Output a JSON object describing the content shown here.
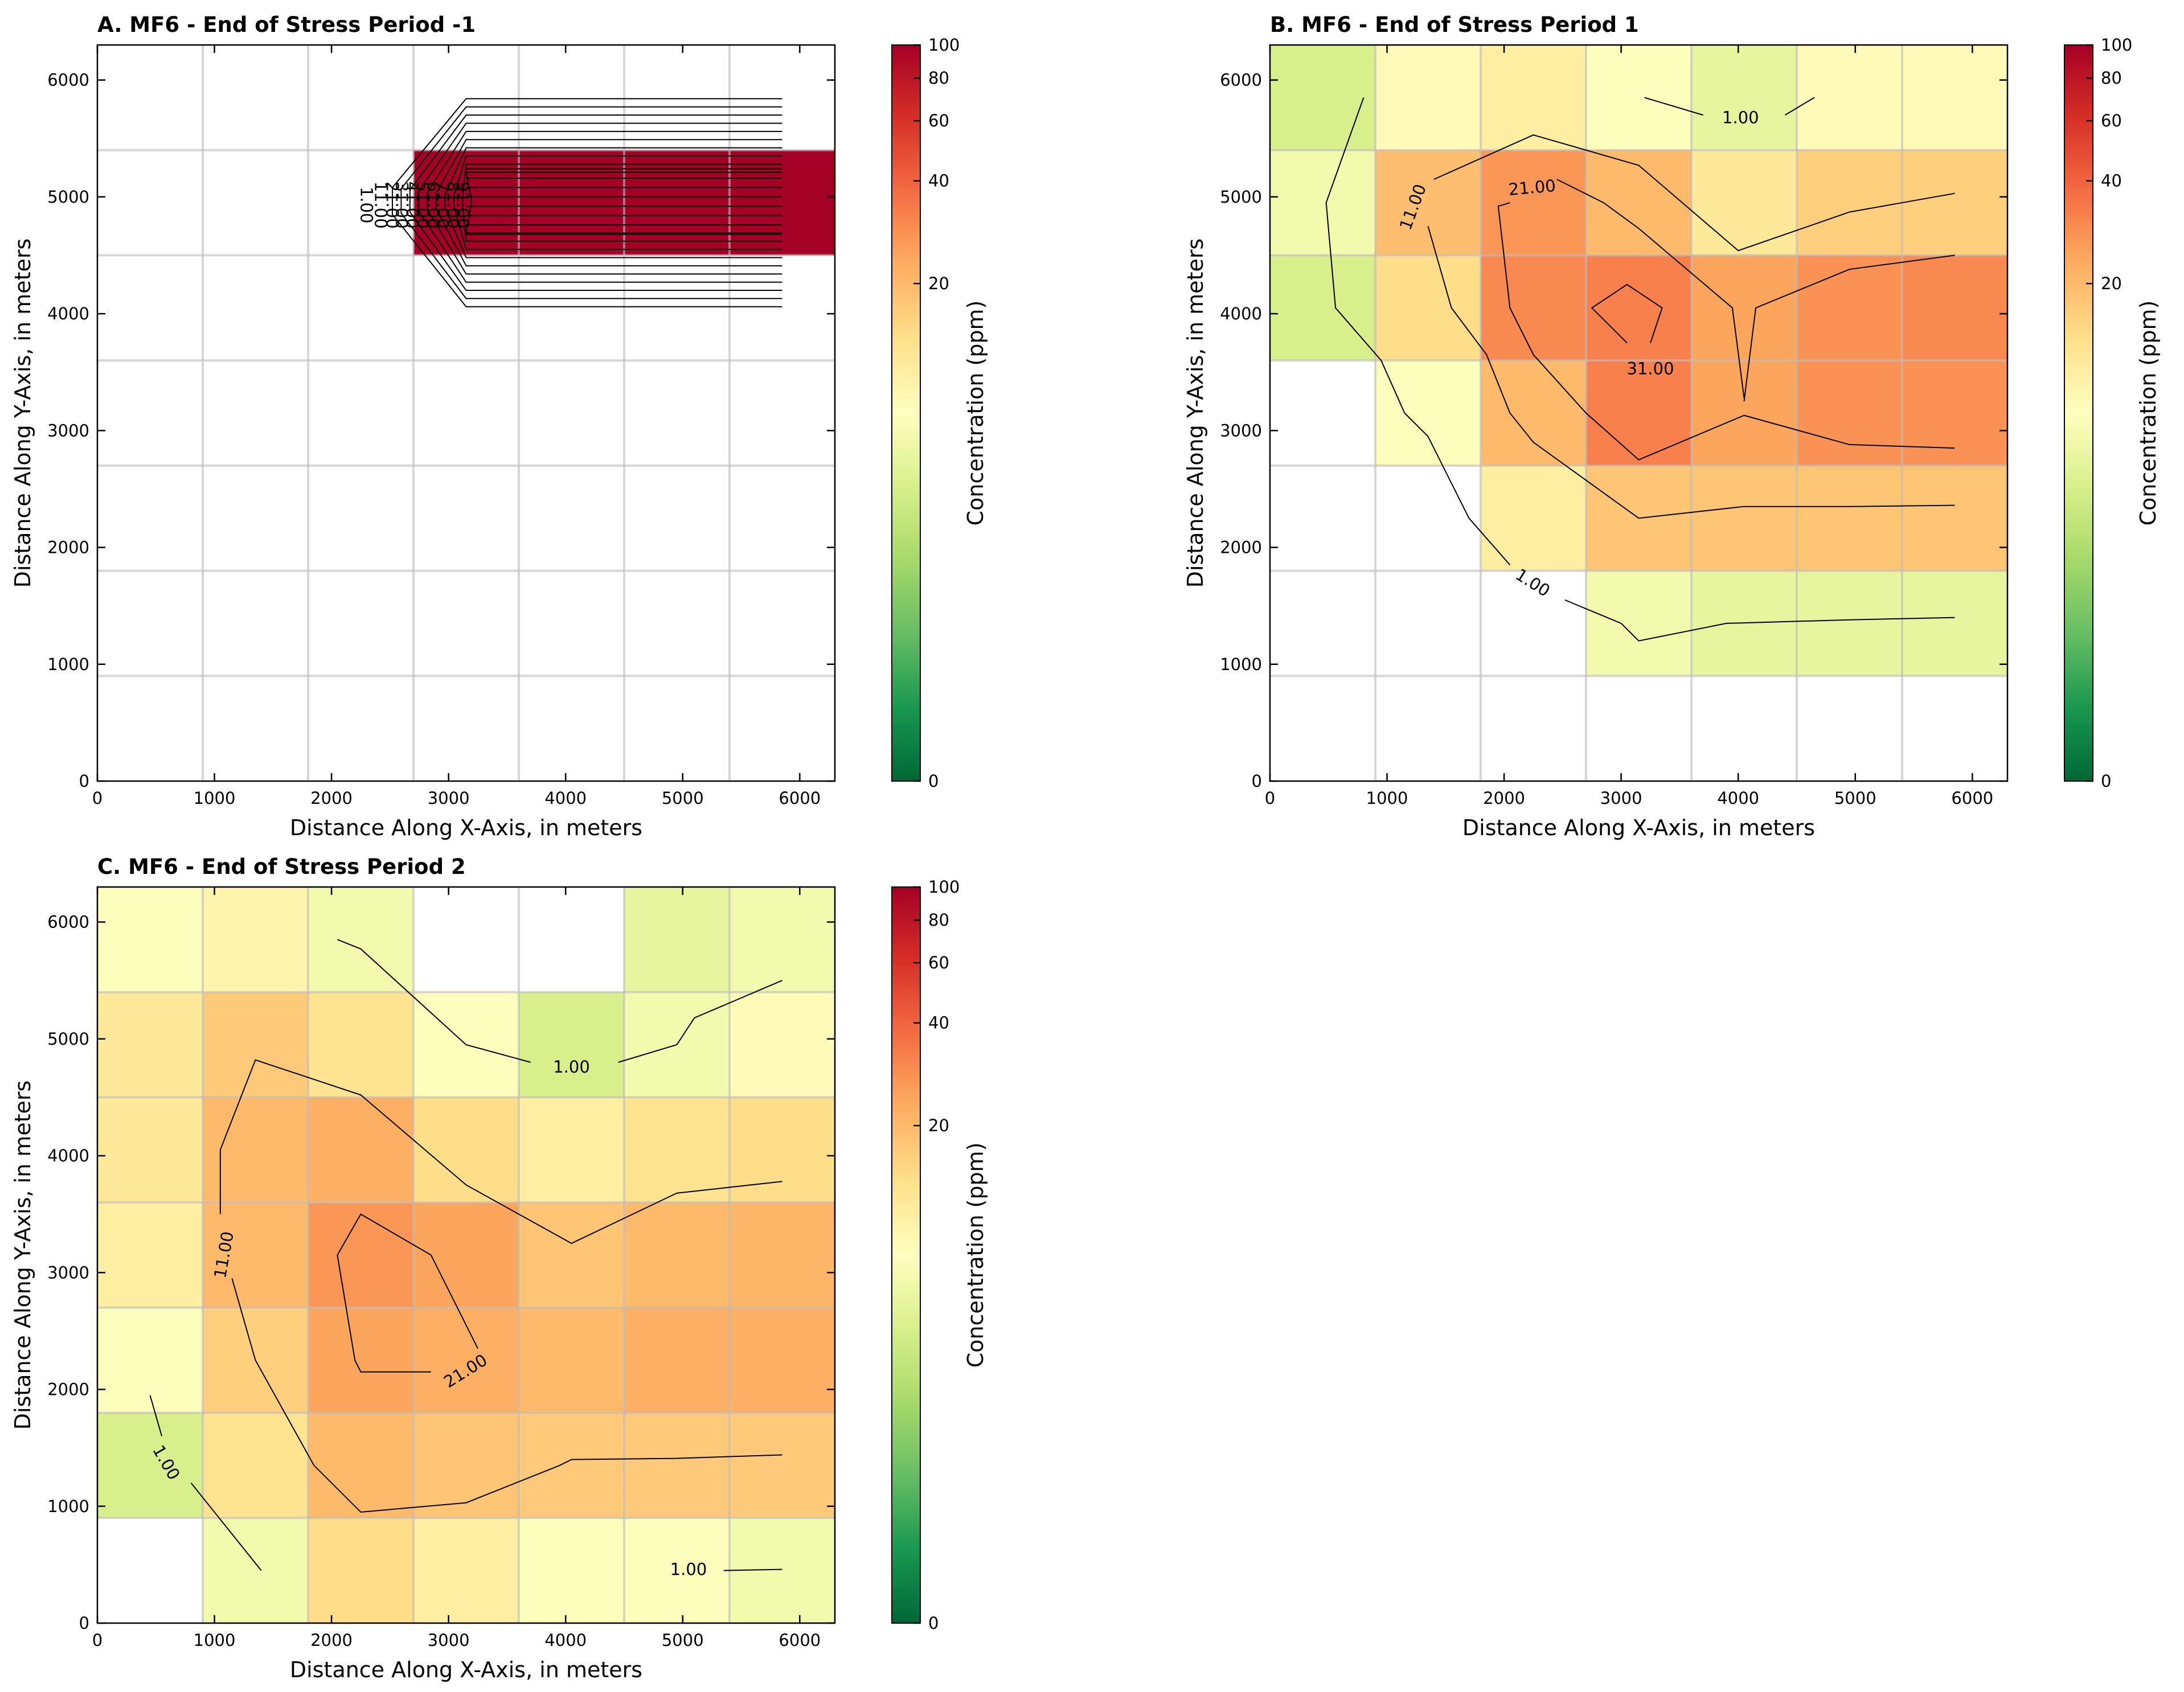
{
  "chart_data": [
    {
      "type": "heatmap",
      "panel": "A",
      "title": "A. MF6 - End of Stress Period -1",
      "xlabel": "Distance Along X-Axis, in meters",
      "ylabel": "Distance Along Y-Axis, in meters",
      "xlim": [
        0,
        6300
      ],
      "ylim": [
        0,
        6300
      ],
      "xticks": [
        0,
        1000,
        2000,
        3000,
        4000,
        5000,
        6000
      ],
      "yticks": [
        0,
        1000,
        2000,
        3000,
        4000,
        5000,
        6000
      ],
      "grid": true,
      "colorbar_label": "Concentration (ppm)",
      "colorbar_ticks": [
        "0",
        "20",
        "40",
        "60",
        "80",
        "100"
      ],
      "cell_size": 900,
      "rows_top_to_bottom": [
        [
          null,
          null,
          null,
          null,
          null,
          null,
          null
        ],
        [
          null,
          null,
          null,
          100,
          100,
          100,
          100
        ],
        [
          null,
          null,
          null,
          null,
          null,
          null,
          null
        ],
        [
          null,
          null,
          null,
          null,
          null,
          null,
          null
        ],
        [
          null,
          null,
          null,
          null,
          null,
          null,
          null
        ],
        [
          null,
          null,
          null,
          null,
          null,
          null,
          null
        ],
        [
          null,
          null,
          null,
          null,
          null,
          null,
          null
        ]
      ],
      "contour_labels": [
        {
          "text": "1.00",
          "x": 2290,
          "y": 4930,
          "rot": 90
        },
        {
          "text": "11.00",
          "x": 2410,
          "y": 4930,
          "rot": 90
        },
        {
          "text": "21.00",
          "x": 2510,
          "y": 4930,
          "rot": 90
        },
        {
          "text": "31.00",
          "x": 2590,
          "y": 4930,
          "rot": 90
        },
        {
          "text": "41.00",
          "x": 2680,
          "y": 4930,
          "rot": 90
        },
        {
          "text": "51.00",
          "x": 2770,
          "y": 4930,
          "rot": 90
        },
        {
          "text": "61.00",
          "x": 2860,
          "y": 4930,
          "rot": 90
        },
        {
          "text": "71.00",
          "x": 2940,
          "y": 4930,
          "rot": 90
        },
        {
          "text": "81.00",
          "x": 3030,
          "y": 4930,
          "rot": 90
        },
        {
          "text": "91.00",
          "x": 3110,
          "y": 4930,
          "rot": 90
        }
      ]
    },
    {
      "type": "heatmap",
      "panel": "B",
      "title": "B. MF6 - End of Stress Period 1",
      "xlabel": "Distance Along X-Axis, in meters",
      "ylabel": "Distance Along Y-Axis, in meters",
      "xlim": [
        0,
        6300
      ],
      "ylim": [
        0,
        6300
      ],
      "xticks": [
        0,
        1000,
        2000,
        3000,
        4000,
        5000,
        6000
      ],
      "yticks": [
        0,
        1000,
        2000,
        3000,
        4000,
        5000,
        6000
      ],
      "grid": true,
      "colorbar_label": "Concentration (ppm)",
      "colorbar_ticks": [
        "0",
        "20",
        "40",
        "60",
        "80",
        "100"
      ],
      "cell_size": 900,
      "rows_top_to_bottom": [
        [
          5,
          9,
          11,
          8,
          6,
          9,
          9
        ],
        [
          7,
          19,
          27,
          20,
          12,
          16,
          16
        ],
        [
          5,
          14,
          30,
          32,
          24,
          28,
          30
        ],
        [
          null,
          8,
          20,
          32,
          24,
          28,
          28
        ],
        [
          null,
          null,
          11,
          18,
          18,
          18,
          18
        ],
        [
          null,
          null,
          null,
          7,
          6,
          6,
          6
        ],
        [
          null,
          null,
          null,
          null,
          null,
          null,
          null
        ]
      ],
      "contour_labels": [
        {
          "text": "1.00",
          "x": 4020,
          "y": 5670,
          "rot": 0
        },
        {
          "text": "11.00",
          "x": 1230,
          "y": 4910,
          "rot": -70
        },
        {
          "text": "21.00",
          "x": 2240,
          "y": 5070,
          "rot": -5
        },
        {
          "text": "31.00",
          "x": 3250,
          "y": 3520,
          "rot": 0
        },
        {
          "text": "1.00",
          "x": 2240,
          "y": 1690,
          "rot": 32
        }
      ]
    },
    {
      "type": "heatmap",
      "panel": "C",
      "title": "C. MF6 - End of Stress Period 2",
      "xlabel": "Distance Along X-Axis, in meters",
      "ylabel": "Distance Along Y-Axis, in meters",
      "xlim": [
        0,
        6300
      ],
      "ylim": [
        0,
        6300
      ],
      "xticks": [
        0,
        1000,
        2000,
        3000,
        4000,
        5000,
        6000
      ],
      "yticks": [
        0,
        1000,
        2000,
        3000,
        4000,
        5000,
        6000
      ],
      "grid": true,
      "colorbar_label": "Concentration (ppm)",
      "colorbar_ticks": [
        "0",
        "20",
        "40",
        "60",
        "80",
        "100"
      ],
      "cell_size": 900,
      "rows_top_to_bottom": [
        [
          8,
          10,
          7,
          null,
          null,
          6,
          7
        ],
        [
          12,
          17,
          13,
          8,
          5,
          7,
          9
        ],
        [
          12,
          20,
          22,
          14,
          11,
          13,
          14
        ],
        [
          11,
          20,
          27,
          24,
          18,
          20,
          21
        ],
        [
          8,
          16,
          24,
          22,
          20,
          22,
          22
        ],
        [
          5,
          13,
          20,
          18,
          17,
          17,
          17
        ],
        [
          null,
          7,
          14,
          11,
          8,
          8,
          7
        ]
      ],
      "contour_labels": [
        {
          "text": "1.00",
          "x": 4050,
          "y": 4750,
          "rot": 0
        },
        {
          "text": "11.00",
          "x": 1090,
          "y": 3150,
          "rot": -80
        },
        {
          "text": "21.00",
          "x": 3150,
          "y": 2150,
          "rot": -32
        },
        {
          "text": "1.00",
          "x": 580,
          "y": 1370,
          "rot": 60
        },
        {
          "text": "1.00",
          "x": 5050,
          "y": 450,
          "rot": 0
        }
      ]
    }
  ]
}
